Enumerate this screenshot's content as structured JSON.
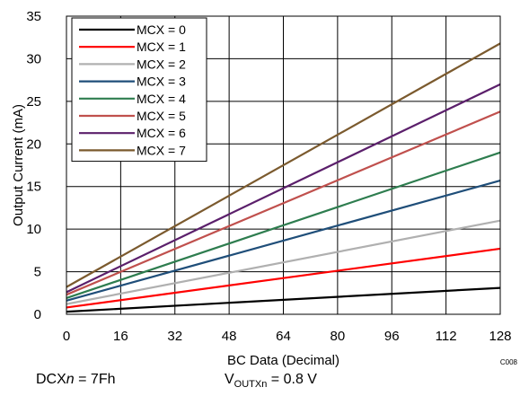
{
  "chart_data": {
    "type": "line",
    "xlabel": "BC Data (Decimal)",
    "ylabel": "Output Current (mA)",
    "xlim": [
      0,
      128
    ],
    "ylim": [
      0,
      35
    ],
    "xticks": [
      0,
      16,
      32,
      48,
      64,
      80,
      96,
      112,
      128
    ],
    "yticks": [
      0,
      5,
      10,
      15,
      20,
      25,
      30,
      35
    ],
    "grid": true,
    "legend_position": "top-left",
    "x": [
      0,
      128
    ],
    "series": [
      {
        "name": "MCX = 0",
        "color": "#000000",
        "values": [
          0.3,
          3.1
        ]
      },
      {
        "name": "MCX = 1",
        "color": "#ff0000",
        "values": [
          0.8,
          7.7
        ]
      },
      {
        "name": "MCX = 2",
        "color": "#b0b0b0",
        "values": [
          1.2,
          11.0
        ]
      },
      {
        "name": "MCX = 3",
        "color": "#1f4e79",
        "values": [
          1.6,
          15.7
        ]
      },
      {
        "name": "MCX = 4",
        "color": "#2e7d4f",
        "values": [
          1.9,
          19.0
        ]
      },
      {
        "name": "MCX = 5",
        "color": "#c0504d",
        "values": [
          2.3,
          23.8
        ]
      },
      {
        "name": "MCX = 6",
        "color": "#5b1f6b",
        "values": [
          2.6,
          27.0
        ]
      },
      {
        "name": "MCX = 7",
        "color": "#7b5a2e",
        "values": [
          3.2,
          31.8
        ]
      }
    ],
    "figure_code": "C008"
  },
  "conditions": {
    "dcx_prefix": "DCX",
    "dcx_var": "n",
    "dcx_value": " = 7Fh",
    "vout_main": "V",
    "vout_sub": "OUTXn",
    "vout_value": " = 0.8 V"
  }
}
